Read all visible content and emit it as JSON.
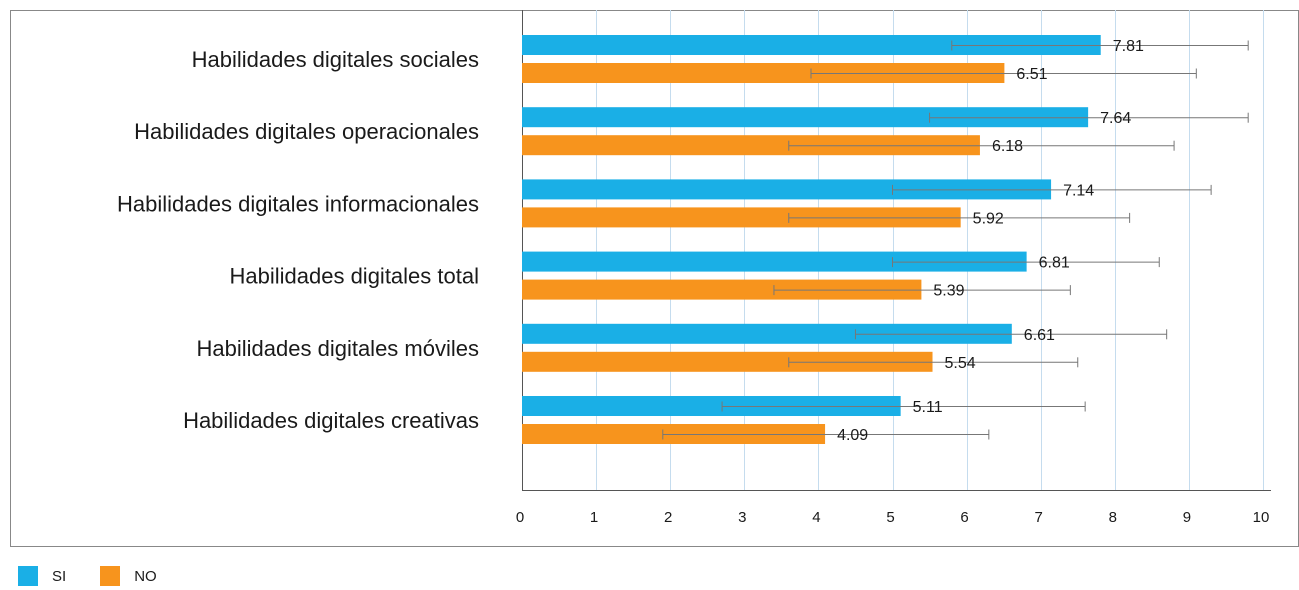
{
  "chart_data": {
    "type": "bar",
    "orientation": "horizontal",
    "categories": [
      "Habilidades digitales sociales",
      "Habilidades digitales operacionales",
      "Habilidades digitales informacionales",
      "Habilidades digitales total",
      "Habilidades digitales móviles",
      "Habilidades digitales creativas"
    ],
    "series": [
      {
        "name": "SI",
        "color": "#1aafe6",
        "values": [
          7.81,
          7.64,
          7.14,
          6.81,
          6.61,
          5.11
        ],
        "labels": [
          "7.81",
          "7.64",
          "7.14",
          "6.81",
          "6.61",
          "5.11"
        ],
        "error_low": [
          5.8,
          5.5,
          5.0,
          5.0,
          4.5,
          2.7
        ],
        "error_high": [
          9.8,
          9.8,
          9.3,
          8.6,
          8.7,
          7.6
        ]
      },
      {
        "name": "NO",
        "color": "#f7941d",
        "values": [
          6.51,
          6.18,
          5.92,
          5.39,
          5.54,
          4.09
        ],
        "labels": [
          "6.51",
          "6.18",
          "5.92",
          "5.39",
          "5.54",
          "4.09"
        ],
        "error_low": [
          3.9,
          3.6,
          3.6,
          3.4,
          3.6,
          1.9
        ],
        "error_high": [
          9.1,
          8.8,
          8.2,
          7.4,
          7.5,
          6.3
        ]
      }
    ],
    "xlim": [
      0,
      10
    ],
    "xticks": [
      0,
      1,
      2,
      3,
      4,
      5,
      6,
      7,
      8,
      9,
      10
    ],
    "xtick_labels": [
      "0",
      "1",
      "2",
      "3",
      "4",
      "5",
      "6",
      "7",
      "8",
      "9",
      "10"
    ],
    "grid": true,
    "legend_position": "bottom-left",
    "xlabel": "",
    "ylabel": ""
  },
  "legend": {
    "si_label": "SI",
    "no_label": "NO"
  }
}
